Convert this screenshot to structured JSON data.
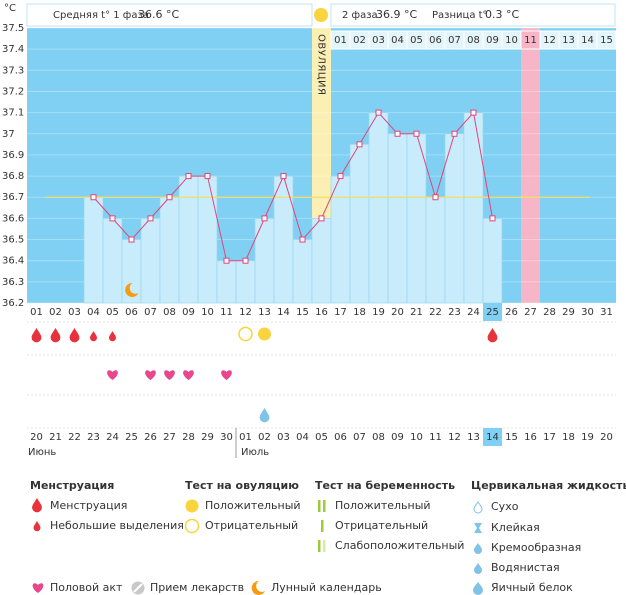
{
  "header": {
    "unit": "°C",
    "phase1_label": "Средняя t° 1 фаза",
    "phase1_value": "36.6 °C",
    "phase2_label": "2 фаза",
    "phase2_value": "36.9 °C",
    "diff_label": "Разница t°",
    "diff_value": "0.3 °C"
  },
  "chart_data": {
    "type": "line",
    "categories": [
      "01",
      "02",
      "03",
      "04",
      "05",
      "06",
      "07",
      "08",
      "09",
      "10",
      "11",
      "12",
      "13",
      "14",
      "15",
      "16",
      "17",
      "18",
      "19",
      "20",
      "21",
      "22",
      "23",
      "24",
      "25",
      "26",
      "27",
      "28",
      "29",
      "30",
      "31"
    ],
    "values": [
      null,
      null,
      null,
      36.7,
      36.6,
      36.5,
      36.6,
      36.7,
      36.8,
      36.8,
      36.4,
      36.4,
      36.6,
      36.8,
      36.5,
      36.6,
      36.8,
      36.95,
      37.1,
      37.0,
      37.0,
      36.7,
      37.0,
      37.1,
      36.6,
      null,
      null,
      null,
      null,
      null,
      null
    ],
    "ylim": [
      36.2,
      37.5
    ],
    "yticks": [
      36.2,
      36.3,
      36.4,
      36.5,
      36.6,
      36.7,
      36.8,
      36.9,
      37,
      37.1,
      37.2,
      37.3,
      37.4,
      37.5
    ],
    "coverline": 36.7,
    "ovulation_label": "ОВУЛЯЦИЯ",
    "ovulation_day": "16",
    "phase2_days": [
      "01",
      "02",
      "03",
      "04",
      "05",
      "06",
      "07",
      "08",
      "09",
      "10",
      "11",
      "12",
      "13",
      "14",
      "15"
    ],
    "expected_period_day": "27",
    "current_day": "25",
    "line_color": "#e0457b",
    "bar_color": "#c9ecfc",
    "background": "#7fd0f2",
    "coverline_color": "#f0e060"
  },
  "events": {
    "menstruation": [
      "01",
      "02",
      "03",
      "25"
    ],
    "spotting": [
      "04",
      "05"
    ],
    "ovulation_test_negative": [
      "12"
    ],
    "ovulation_test_positive": [
      "13"
    ],
    "intercourse": [
      "05",
      "07",
      "08",
      "09",
      "11"
    ],
    "cervical_fluid_egg_white": [
      "13"
    ],
    "moon": [
      "06"
    ]
  },
  "dates": {
    "labels": [
      "20",
      "21",
      "22",
      "23",
      "24",
      "25",
      "26",
      "27",
      "28",
      "29",
      "30",
      "01",
      "02",
      "03",
      "04",
      "05",
      "06",
      "07",
      "08",
      "09",
      "10",
      "11",
      "12",
      "13",
      "14",
      "15",
      "16",
      "17",
      "18",
      "19",
      "20"
    ],
    "weekend": [
      "25",
      "26",
      "02",
      "03",
      "09",
      "10",
      "16",
      "17"
    ],
    "current": "14",
    "months": [
      "Июнь",
      "Июль"
    ]
  },
  "legend": {
    "menstruation": {
      "title": "Менструация",
      "items": [
        "Менструация",
        "Небольшие выделения"
      ]
    },
    "ovulation_test": {
      "title": "Тест на овуляцию",
      "items": [
        "Положительный",
        "Отрицательный"
      ]
    },
    "pregnancy_test": {
      "title": "Тест на беременность",
      "items": [
        "Положительный",
        "Отрицательный",
        "Слабоположительный"
      ]
    },
    "cervical_fluid": {
      "title": "Цервикальная жидкость",
      "items": [
        "Сухо",
        "Клейкая",
        "Кремообразная",
        "Водянистая",
        "Яичный белок"
      ]
    },
    "other": [
      "Половой акт",
      "Прием лекарств",
      "Лунный календарь"
    ]
  }
}
